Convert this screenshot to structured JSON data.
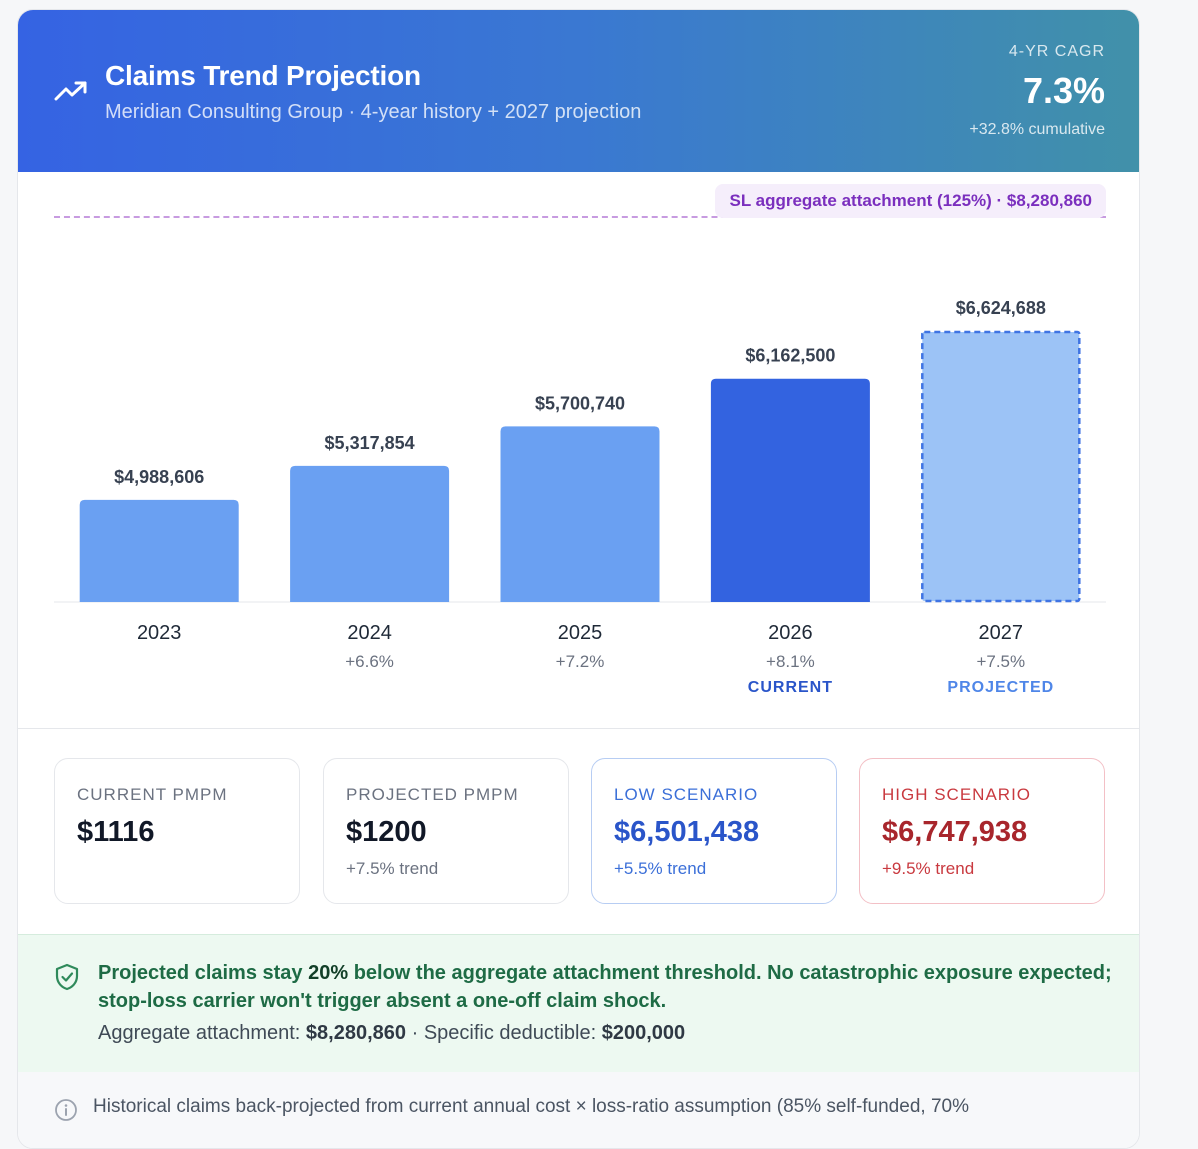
{
  "header": {
    "title": "Claims Trend Projection",
    "subtitle": "Meridian Consulting Group · 4-year history + 2027 projection",
    "cagr_label": "4-YR CAGR",
    "cagr_value": "7.3%",
    "cagr_cumulative": "+32.8% cumulative",
    "icon": "trending-up-icon"
  },
  "attachment": {
    "label": "SL aggregate attachment (125%) · $8,280,860"
  },
  "chart_data": {
    "type": "bar",
    "categories": [
      "2023",
      "2024",
      "2025",
      "2026",
      "2027"
    ],
    "values": [
      4988606,
      5317854,
      5700740,
      6162500,
      6624688
    ],
    "value_labels": [
      "$4,988,606",
      "$5,317,854",
      "$5,700,740",
      "$6,162,500",
      "$6,624,688"
    ],
    "growth_labels": [
      "",
      "+6.6%",
      "+7.2%",
      "+8.1%",
      "+7.5%"
    ],
    "status_labels": [
      "",
      "",
      "",
      "CURRENT",
      "PROJECTED"
    ],
    "reference_line": {
      "label": "SL aggregate attachment (125%) · $8,280,860",
      "value": 8280860
    },
    "colors": {
      "history": "#6aa0f2",
      "current": "#3363e0",
      "projected_fill": "#9cc3f6",
      "projected_stroke": "#3f74e3",
      "reference": "#c79be0"
    },
    "grid": false,
    "legend": "none"
  },
  "tiles": [
    {
      "label": "CURRENT PMPM",
      "value": "$1116",
      "sub": ""
    },
    {
      "label": "PROJECTED PMPM",
      "value": "$1200",
      "sub": "+7.5% trend"
    },
    {
      "label": "LOW SCENARIO",
      "value": "$6,501,438",
      "sub": "+5.5% trend"
    },
    {
      "label": "HIGH SCENARIO",
      "value": "$6,747,938",
      "sub": "+9.5% trend"
    }
  ],
  "note": {
    "main_pre": "Projected claims stay ",
    "main_pct": "20%",
    "main_post": " below the aggregate attachment threshold. No catastrophic exposure expected; stop-loss carrier won't trigger absent a one-off claim shock.",
    "sub_attach_label": "Aggregate attachment: ",
    "sub_attach_value": "$8,280,860",
    "sub_sep": " · ",
    "sub_ded_label": "Specific deductible: ",
    "sub_ded_value": "$200,000",
    "icon": "shield-check-icon"
  },
  "footer": {
    "text": "Historical claims back-projected from current annual cost × loss-ratio assumption (85% self-funded, 70%",
    "icon": "info-icon"
  }
}
